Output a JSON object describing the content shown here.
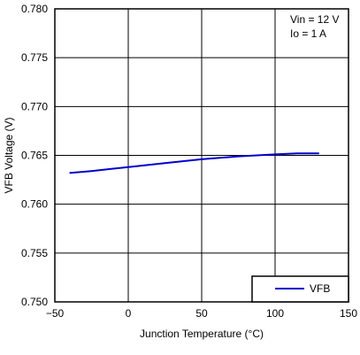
{
  "chart_data": {
    "type": "line",
    "xlabel": "Junction Temperature (°C)",
    "ylabel": "VFB Voltage (V)",
    "xlim": [
      -50,
      150
    ],
    "ylim": [
      0.75,
      0.78
    ],
    "x_ticks": [
      "−50",
      "0",
      "50",
      "100",
      "150"
    ],
    "y_ticks": [
      "0.750",
      "0.755",
      "0.760",
      "0.765",
      "0.770",
      "0.775",
      "0.780"
    ],
    "grid": true,
    "annotations": [
      "Vin = 12 V",
      "Io = 1 A"
    ],
    "legend": {
      "placement": "bottom-right",
      "entries": [
        "VFB"
      ]
    },
    "series": [
      {
        "name": "VFB",
        "color": "#0000cc",
        "x": [
          -40,
          -25,
          0,
          25,
          50,
          75,
          100,
          115,
          125,
          130
        ],
        "y": [
          0.7632,
          0.7634,
          0.7638,
          0.7642,
          0.7646,
          0.7649,
          0.7651,
          0.7652,
          0.7652,
          0.7652
        ]
      }
    ]
  }
}
